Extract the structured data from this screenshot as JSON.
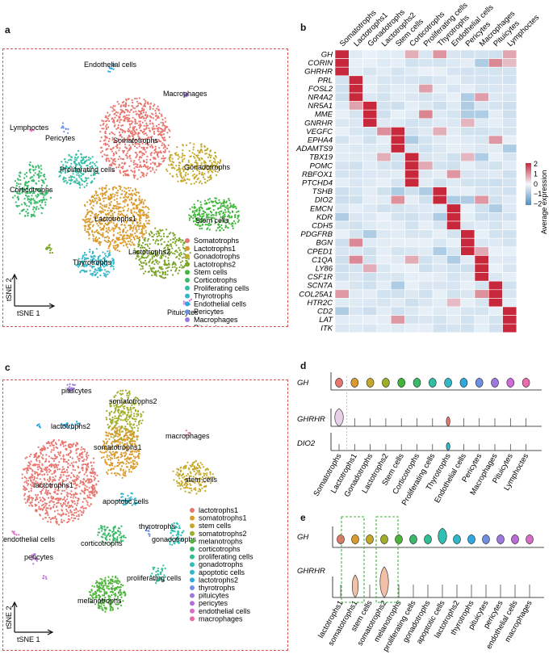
{
  "panels": {
    "a": "a",
    "b": "b",
    "c": "c",
    "d": "d",
    "e": "e"
  },
  "axes": {
    "tsne1": "tSNE 1",
    "tsne2": "tSNE 2"
  },
  "panel_a": {
    "legend": [
      {
        "label": "Somatotrophs",
        "color": "#E8756E"
      },
      {
        "label": "Lactotrophs1",
        "color": "#D99A2E"
      },
      {
        "label": "Gonadotrophs",
        "color": "#C4A82A"
      },
      {
        "label": "Lactotrophs2",
        "color": "#7BA428"
      },
      {
        "label": "Stem cells",
        "color": "#3FB63A"
      },
      {
        "label": "Corticotrophs",
        "color": "#3BB96A"
      },
      {
        "label": "Proliferating cells",
        "color": "#2FBFA5"
      },
      {
        "label": "Thyrotrophs",
        "color": "#32B6C8"
      },
      {
        "label": "Endothelial cells",
        "color": "#2FA8E0"
      },
      {
        "label": "Pericytes",
        "color": "#6C8FE0"
      },
      {
        "label": "Macrophages",
        "color": "#9C78E0"
      },
      {
        "label": "Pituicytes",
        "color": "#CF6BD8"
      },
      {
        "label": "Lymphoctes",
        "color": "#E86BB0"
      }
    ],
    "cluster_labels": [
      "Endothelial cells",
      "Macrophages",
      "Lymphoctes",
      "Pericytes",
      "Somatotrophs",
      "Proliferating cells",
      "Gonadotrophs",
      "Corticotrophs",
      "Lactotrophs1",
      "Stem cells",
      "Lactotrophs2",
      "Thyrotrophs",
      "Pituicytes"
    ]
  },
  "panel_b": {
    "columns": [
      "Somatotrophs",
      "Lactotrophs1",
      "Gonadotrophs",
      "Lactotrophs2",
      "Stem cells",
      "Corticotrophs",
      "Proliferating cells",
      "Thyrotrophs",
      "Endothelial cells",
      "Pericytes",
      "Macrophages",
      "Pituicytes",
      "Lymphoctes"
    ],
    "genes": [
      "GH",
      "CORIN",
      "GHRHR",
      "PRL",
      "FOSL2",
      "NR4A2",
      "NR5A1",
      "MME",
      "GNRHR",
      "VEGFC",
      "EPHA4",
      "ADAMTS9",
      "TBX19",
      "POMC",
      "RBFOX1",
      "PTCHD4",
      "TSHB",
      "DIO2",
      "EMCN",
      "KDR",
      "CDH5",
      "PDGFRB",
      "BGN",
      "CPED1",
      "C1QA",
      "LY86",
      "CSF1R",
      "SCN7A",
      "COL25A1",
      "HTR2C",
      "CD2",
      "LAT",
      "ITK"
    ],
    "legend_title": "Average expression",
    "legend_ticks": [
      "2",
      "1",
      "0",
      "−1",
      "−2"
    ],
    "colors": {
      "high": "#C8283C",
      "zero": "#F4F7FB",
      "low": "#4C8FC2"
    }
  },
  "panel_c": {
    "legend": [
      {
        "label": "lactotrophs1",
        "color": "#E8756E"
      },
      {
        "label": "somatotrophs1",
        "color": "#D99A2E"
      },
      {
        "label": "stem cells",
        "color": "#C4A82A"
      },
      {
        "label": "somatotrophs2",
        "color": "#9FAE28"
      },
      {
        "label": "melanotrophs",
        "color": "#4FB43A"
      },
      {
        "label": "corticotrophs",
        "color": "#3BB96A"
      },
      {
        "label": "proliferating cells",
        "color": "#2FBF95"
      },
      {
        "label": "gonadotrophs",
        "color": "#2FBFB5"
      },
      {
        "label": "apoptotic cells",
        "color": "#32B6C8"
      },
      {
        "label": "lactotrophs2",
        "color": "#2FA8E0"
      },
      {
        "label": "thyrotrophs",
        "color": "#6C8FE0"
      },
      {
        "label": "pituicytes",
        "color": "#9C78E0"
      },
      {
        "label": "pericytes",
        "color": "#B96BD8"
      },
      {
        "label": "endothelial cells",
        "color": "#D86BC8"
      },
      {
        "label": "macrophages",
        "color": "#E86BA8"
      }
    ],
    "cluster_labels": [
      "pituicytes",
      "somatotrophs2",
      "lactotrophs2",
      "macrophages",
      "somatotrophs1",
      "lactotrophs1",
      "stem cells",
      "apoptotic cells",
      "thyrotrophs",
      "gonadotrophs",
      "corticotrophs",
      "endothelial cells",
      "pericytes",
      "proliferating cells",
      "melanotrophs"
    ]
  },
  "panel_d": {
    "genes": [
      "GH",
      "GHRHR",
      "DIO2"
    ],
    "categories": [
      "Somatotrophs",
      "Lactotrophs1",
      "Gonadotrophs",
      "Lactotrophs2",
      "Stem cells",
      "Corticotrophs",
      "Proliferating cells",
      "Thyrotrophs",
      "Endothelial cells",
      "Pericytes",
      "Macrophages",
      "Pituicytes",
      "Lymphoctes"
    ]
  },
  "panel_e": {
    "genes": [
      "GH",
      "GHRHR"
    ],
    "categories": [
      "lactotrophs1",
      "somatotrophs1",
      "stem cells",
      "somatotrophs2",
      "melanotrophs",
      "proliferating cells",
      "gonadotrophs",
      "apoptotic cells",
      "lactotrophs2",
      "thyrotrophs",
      "pituicytes",
      "pericytes",
      "endothelial cells",
      "macrophages"
    ]
  }
}
